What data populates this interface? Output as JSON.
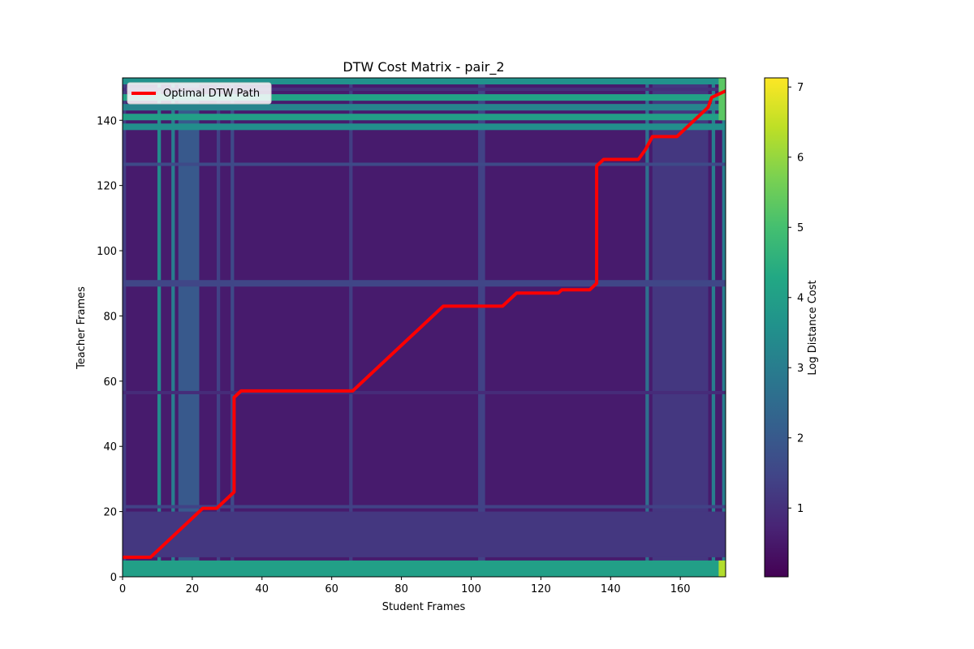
{
  "chart_data": {
    "type": "heatmap",
    "title": "DTW Cost Matrix - pair_2",
    "xlabel": "Student Frames",
    "ylabel": "Teacher Frames",
    "xlim": [
      0,
      173
    ],
    "ylim": [
      0,
      153
    ],
    "x_ticks": [
      0,
      20,
      40,
      60,
      80,
      100,
      120,
      140,
      160
    ],
    "y_ticks": [
      0,
      20,
      40,
      60,
      80,
      100,
      120,
      140
    ],
    "grid": false,
    "colormap": "viridis",
    "colorbar": {
      "label": "Log Distance Cost",
      "range": [
        0.02,
        7.13
      ],
      "ticks": [
        1,
        2,
        3,
        4,
        5,
        6,
        7
      ]
    },
    "legend": {
      "placement": "top-left",
      "entries": [
        "Optimal DTW Path"
      ]
    },
    "path_color": "#ff0000",
    "base_cost": 0.55,
    "row_bands": [
      {
        "y": [
          0,
          5
        ],
        "cost": 4.0
      },
      {
        "y": [
          6,
          20
        ],
        "cost": 1.15
      },
      {
        "y": [
          21,
          22
        ],
        "cost": 1.4
      },
      {
        "y": [
          56,
          57
        ],
        "cost": 0.9
      },
      {
        "y": [
          89,
          91
        ],
        "cost": 1.5
      },
      {
        "y": [
          126,
          127
        ],
        "cost": 1.6
      },
      {
        "y": [
          137,
          139
        ],
        "cost": 3.5
      },
      {
        "y": [
          140,
          142
        ],
        "cost": 4.0
      },
      {
        "y": [
          143,
          145
        ],
        "cost": 3.2
      },
      {
        "y": [
          146,
          148
        ],
        "cost": 4.1
      },
      {
        "y": [
          149,
          150
        ],
        "cost": 1.0
      },
      {
        "y": [
          151,
          153
        ],
        "cost": 3.6
      }
    ],
    "col_bands": [
      {
        "x": [
          0,
          1
        ],
        "cost": 1.3
      },
      {
        "x": [
          10,
          11
        ],
        "cost": 3.4
      },
      {
        "x": [
          14,
          15
        ],
        "cost": 3.0
      },
      {
        "x": [
          16,
          22
        ],
        "cost": 2.0
      },
      {
        "x": [
          27,
          28
        ],
        "cost": 1.4
      },
      {
        "x": [
          31,
          32
        ],
        "cost": 1.6
      },
      {
        "x": [
          65,
          66
        ],
        "cost": 1.3
      },
      {
        "x": [
          102,
          104
        ],
        "cost": 1.4
      },
      {
        "x": [
          150,
          151
        ],
        "cost": 2.6
      },
      {
        "x": [
          152,
          168
        ],
        "cost": 1.15
      },
      {
        "x": [
          169,
          170
        ],
        "cost": 3.0
      },
      {
        "x": [
          172,
          173
        ],
        "cost": 3.0
      }
    ],
    "bright_cells": [
      {
        "x": [
          171,
          173
        ],
        "y": [
          0,
          5
        ],
        "cost": 6.3
      },
      {
        "x": [
          171,
          173
        ],
        "y": [
          140,
          153
        ],
        "cost": 5.3
      }
    ],
    "path": [
      [
        0,
        6
      ],
      [
        8,
        6
      ],
      [
        23,
        21
      ],
      [
        27,
        21
      ],
      [
        32,
        26
      ],
      [
        32,
        55
      ],
      [
        34,
        57
      ],
      [
        66,
        57
      ],
      [
        92,
        83
      ],
      [
        109,
        83
      ],
      [
        113,
        87
      ],
      [
        125,
        87
      ],
      [
        126,
        88
      ],
      [
        134,
        88
      ],
      [
        136,
        90
      ],
      [
        136,
        126
      ],
      [
        138,
        128
      ],
      [
        148,
        128
      ],
      [
        150,
        131
      ],
      [
        152,
        135
      ],
      [
        159,
        135
      ],
      [
        168,
        144
      ],
      [
        169,
        147
      ],
      [
        171,
        148
      ],
      [
        173,
        149
      ]
    ]
  }
}
